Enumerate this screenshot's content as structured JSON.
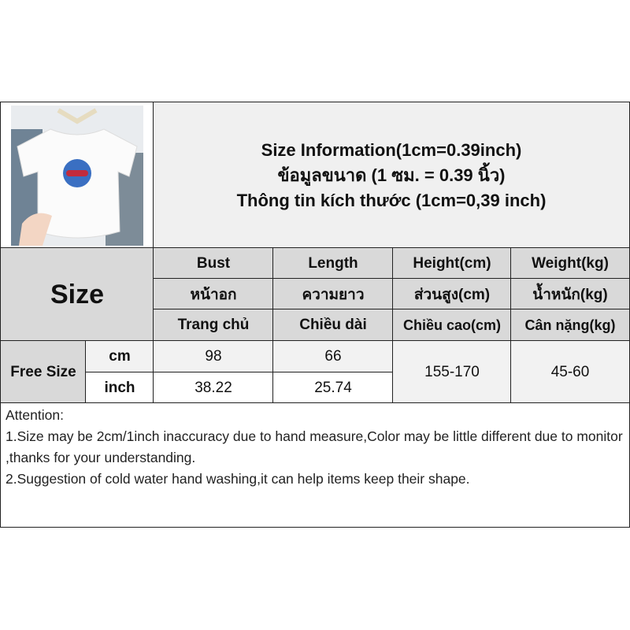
{
  "title": {
    "line1": "Size Information(1cm=0.39inch)",
    "line2": "ข้อมูลขนาด (1 ซม. = 0.39 นิ้ว)",
    "line3": "Thông tin kích thước (1cm=0,39 inch)"
  },
  "size_label": "Size",
  "headers": [
    {
      "en": "Bust",
      "th": "หน้าอก",
      "vi": "Trang chủ"
    },
    {
      "en": "Length",
      "th": "ความยาว",
      "vi": "Chiều dài"
    },
    {
      "en": "Height(cm)",
      "th": "ส่วนสูง(cm)",
      "vi": "Chiều cao(cm)"
    },
    {
      "en": "Weight(kg)",
      "th": "น้ำหนัก(kg)",
      "vi": "Cân nặng(kg)"
    }
  ],
  "row": {
    "size": "Free Size",
    "unit_cm": "cm",
    "unit_inch": "inch",
    "bust_cm": "98",
    "length_cm": "66",
    "bust_inch": "38.22",
    "length_inch": "25.74",
    "height": "155-170",
    "weight": "45-60"
  },
  "attention": {
    "heading": "Attention:",
    "line1": "1.Size may be 2cm/1inch inaccuracy due to hand measure,Color may be little different due to monitor ,thanks for your understanding.",
    "line2": "2.Suggestion of cold water hand washing,it can help items keep their shape."
  }
}
